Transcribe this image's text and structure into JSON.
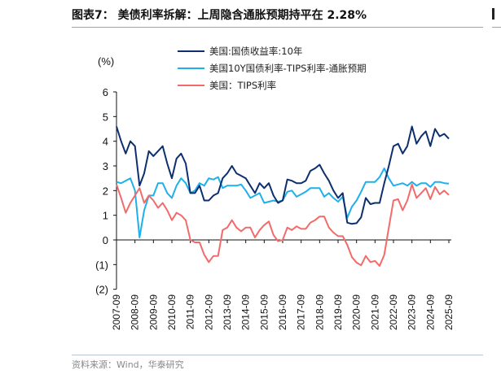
{
  "title": "图表7：  美债利率拆解：上周隐含通胀预期持平在 2.28%",
  "source": "资料来源：Wind，华泰研究",
  "chart_data": {
    "type": "line",
    "title": "图表7：  美债利率拆解：上周隐含通胀预期持平在 2.28%",
    "ylabel": "(%)",
    "xlabel": "",
    "ylim": [
      -2,
      6
    ],
    "yticks": [
      6,
      5,
      4,
      3,
      2,
      1,
      0,
      -1,
      -2
    ],
    "ytick_labels": [
      "6",
      "5",
      "4",
      "3",
      "2",
      "1",
      "0",
      "(1)",
      "(2)"
    ],
    "xtick_labels": [
      "2007-09",
      "2008-09",
      "2009-09",
      "2010-09",
      "2011-09",
      "2012-09",
      "2013-09",
      "2014-09",
      "2015-09",
      "2016-09",
      "2017-09",
      "2018-09",
      "2019-09",
      "2020-09",
      "2021-09",
      "2022-09",
      "2023-09",
      "2024-09",
      "2025-09"
    ],
    "x_frequency": "quarterly",
    "x_start": "2007-09",
    "x_end": "2025-09",
    "legend_position": "top",
    "grid": false,
    "series": [
      {
        "name": "美国:国债收益率:10年",
        "color": "#0d2f6e",
        "values": [
          4.6,
          4.0,
          3.5,
          4.0,
          3.8,
          2.2,
          2.7,
          3.6,
          3.4,
          3.6,
          3.8,
          3.1,
          2.5,
          3.3,
          3.5,
          3.1,
          1.9,
          1.9,
          2.2,
          1.6,
          1.6,
          1.8,
          1.9,
          2.5,
          2.7,
          3.0,
          2.7,
          2.6,
          2.5,
          2.2,
          1.9,
          2.3,
          2.1,
          2.3,
          1.8,
          1.5,
          1.6,
          2.45,
          2.4,
          2.3,
          2.3,
          2.4,
          2.8,
          2.9,
          3.05,
          2.7,
          2.4,
          2.0,
          1.7,
          1.9,
          0.7,
          0.65,
          0.68,
          0.92,
          1.7,
          1.45,
          1.5,
          1.5,
          2.3,
          3.0,
          3.8,
          3.9,
          3.5,
          3.8,
          4.6,
          3.9,
          4.2,
          4.4,
          3.8,
          4.5,
          4.2,
          4.3,
          4.1
        ]
      },
      {
        "name": "美国10Y国债利率-TIPS利率-通胀预期",
        "color": "#1fb0ec",
        "values": [
          2.35,
          2.3,
          2.4,
          2.5,
          2.0,
          0.1,
          1.2,
          1.8,
          1.8,
          2.3,
          2.3,
          1.9,
          1.7,
          2.2,
          2.5,
          2.3,
          1.9,
          2.0,
          2.3,
          2.2,
          2.5,
          2.45,
          2.55,
          2.1,
          2.2,
          2.2,
          2.2,
          2.25,
          2.0,
          1.7,
          1.8,
          1.9,
          1.5,
          1.55,
          1.6,
          1.55,
          1.6,
          1.95,
          2.0,
          1.75,
          1.85,
          1.95,
          2.1,
          2.1,
          2.1,
          1.75,
          1.9,
          1.7,
          1.55,
          1.75,
          0.9,
          1.35,
          1.6,
          1.95,
          2.35,
          2.35,
          2.35,
          2.55,
          2.9,
          2.5,
          2.2,
          2.25,
          2.3,
          2.2,
          2.35,
          2.2,
          2.3,
          2.3,
          2.15,
          2.35,
          2.35,
          2.3,
          2.28
        ]
      },
      {
        "name": "美国：TIPS利率",
        "color": "#f26b6b",
        "values": [
          2.25,
          1.7,
          1.1,
          1.5,
          1.8,
          2.1,
          1.5,
          1.8,
          1.6,
          1.3,
          1.5,
          1.2,
          0.8,
          1.1,
          1.0,
          0.8,
          0.0,
          -0.1,
          -0.1,
          -0.6,
          -0.9,
          -0.65,
          -0.65,
          0.4,
          0.5,
          0.8,
          0.5,
          0.35,
          0.5,
          0.5,
          0.1,
          0.4,
          0.6,
          0.75,
          0.2,
          -0.05,
          0.0,
          0.5,
          0.4,
          0.55,
          0.45,
          0.45,
          0.7,
          0.8,
          0.95,
          0.95,
          0.5,
          0.3,
          0.15,
          0.15,
          -0.2,
          -0.7,
          -0.92,
          -1.03,
          -0.65,
          -0.9,
          -0.85,
          -1.05,
          -0.6,
          0.5,
          1.6,
          1.65,
          1.2,
          1.6,
          2.25,
          1.7,
          1.9,
          2.1,
          1.65,
          2.15,
          1.85,
          2.0,
          1.82
        ]
      }
    ]
  }
}
